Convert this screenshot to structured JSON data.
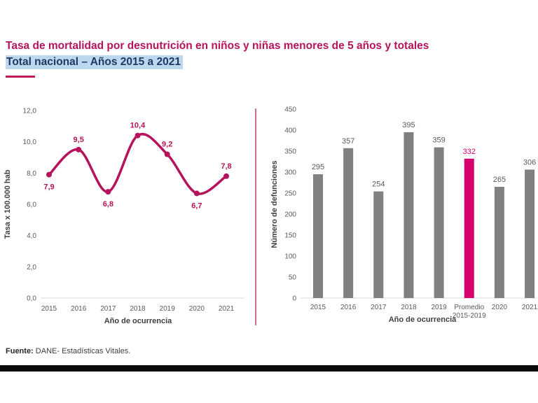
{
  "page": {
    "title_line1": "Tasa de mortalidad por desnutrición en niños y niñas menores de 5 años y totales",
    "title_line2": "Total nacional – Años 2015 a 2021",
    "footer_label": "Fuente:",
    "footer_text": " DANE- Estadísticas Vitales."
  },
  "colors": {
    "title_accent": "#B5135B",
    "title_navy": "#1F3864",
    "highlight_bg": "#BDD7EE",
    "line_series": "#B5135B",
    "bar_gray": "#808080",
    "bar_highlight": "#D6006E",
    "axis_text": "#595959",
    "axis_title": "#3F3F3F",
    "axis_line": "#D9D9D9",
    "divider_pink": "#CE6E96"
  },
  "chart_data": [
    {
      "type": "line",
      "title": "",
      "categories": [
        "2015",
        "2016",
        "2017",
        "2018",
        "2019",
        "2020",
        "2021"
      ],
      "values": [
        7.9,
        9.5,
        6.8,
        10.4,
        9.2,
        6.7,
        7.8
      ],
      "point_labels": [
        "7,9",
        "9,5",
        "6,8",
        "10,4",
        "9,2",
        "6,7",
        "7,8"
      ],
      "label_positions": [
        "below",
        "above",
        "below",
        "above",
        "above",
        "below",
        "above"
      ],
      "xlabel": "Año de ocurrencia",
      "ylabel": "Tasa x 100.000 hab",
      "ylim": [
        0,
        12
      ],
      "ytick_step": 2,
      "ytick_labels": [
        "0,0",
        "2,0",
        "4,0",
        "6,0",
        "8,0",
        "10,0",
        "12,0"
      ],
      "grid": false,
      "legend": "none",
      "line_color": "#B5135B"
    },
    {
      "type": "bar",
      "title": "",
      "categories": [
        "2015",
        "2016",
        "2017",
        "2018",
        "2019",
        [
          "Promedio",
          "2015-2019"
        ],
        "2020",
        "2021"
      ],
      "values": [
        295,
        357,
        254,
        395,
        359,
        332,
        265,
        306
      ],
      "highlight_index": 5,
      "xlabel": "Año de ocurrencia",
      "ylabel": "Número de defunciones",
      "ylim": [
        0,
        450
      ],
      "ytick_step": 50,
      "ytick_labels": [
        "0",
        "50",
        "100",
        "150",
        "200",
        "250",
        "300",
        "350",
        "400",
        "450"
      ],
      "grid": false,
      "legend": "none",
      "bar_color": "#808080",
      "highlight_color": "#D6006E"
    }
  ]
}
